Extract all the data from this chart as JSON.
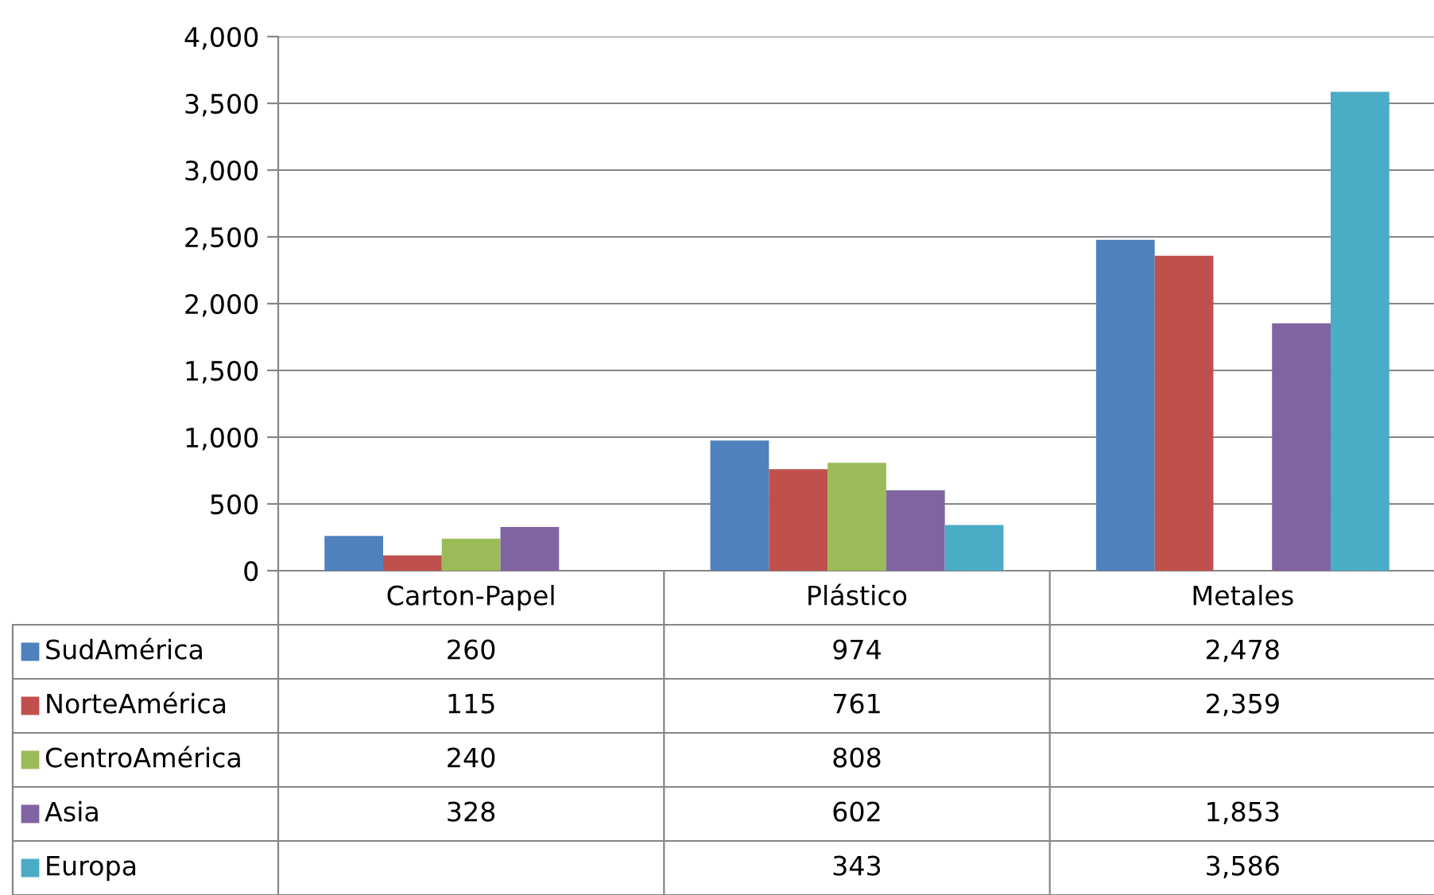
{
  "chart_data": {
    "type": "bar",
    "categories": [
      "Carton-Papel",
      "Plástico",
      "Metales"
    ],
    "series": [
      {
        "name": "SudAmérica",
        "color": "#4f81bd",
        "values": [
          260,
          974,
          2478
        ],
        "value_labels": [
          "260",
          "974",
          "2,478"
        ]
      },
      {
        "name": "NorteAmérica",
        "color": "#c0504d",
        "values": [
          115,
          761,
          2359
        ],
        "value_labels": [
          "115",
          "761",
          "2,359"
        ]
      },
      {
        "name": "CentroAmérica",
        "color": "#9bbb59",
        "values": [
          240,
          808,
          null
        ],
        "value_labels": [
          "240",
          "808",
          null
        ]
      },
      {
        "name": "Asia",
        "color": "#8064a2",
        "values": [
          328,
          602,
          1853
        ],
        "value_labels": [
          "328",
          "602",
          "1,853"
        ]
      },
      {
        "name": "Europa",
        "color": "#4bacc6",
        "values": [
          null,
          343,
          3586
        ],
        "value_labels": [
          null,
          "343",
          "3,586"
        ]
      }
    ],
    "ylim": [
      0,
      4000
    ],
    "yticks": [
      0,
      500,
      {
        "value": 1000,
        "label": "1,000"
      },
      {
        "value": 1500,
        "label": "1,500"
      },
      {
        "value": 2000,
        "label": "2,000"
      },
      {
        "value": 2500,
        "label": "2,500"
      },
      {
        "value": 3000,
        "label": "3,000"
      },
      {
        "value": 3500,
        "label": "3,500"
      },
      {
        "value": 4000,
        "label": "4,000"
      }
    ],
    "grid": "y",
    "legend": "bottom"
  }
}
